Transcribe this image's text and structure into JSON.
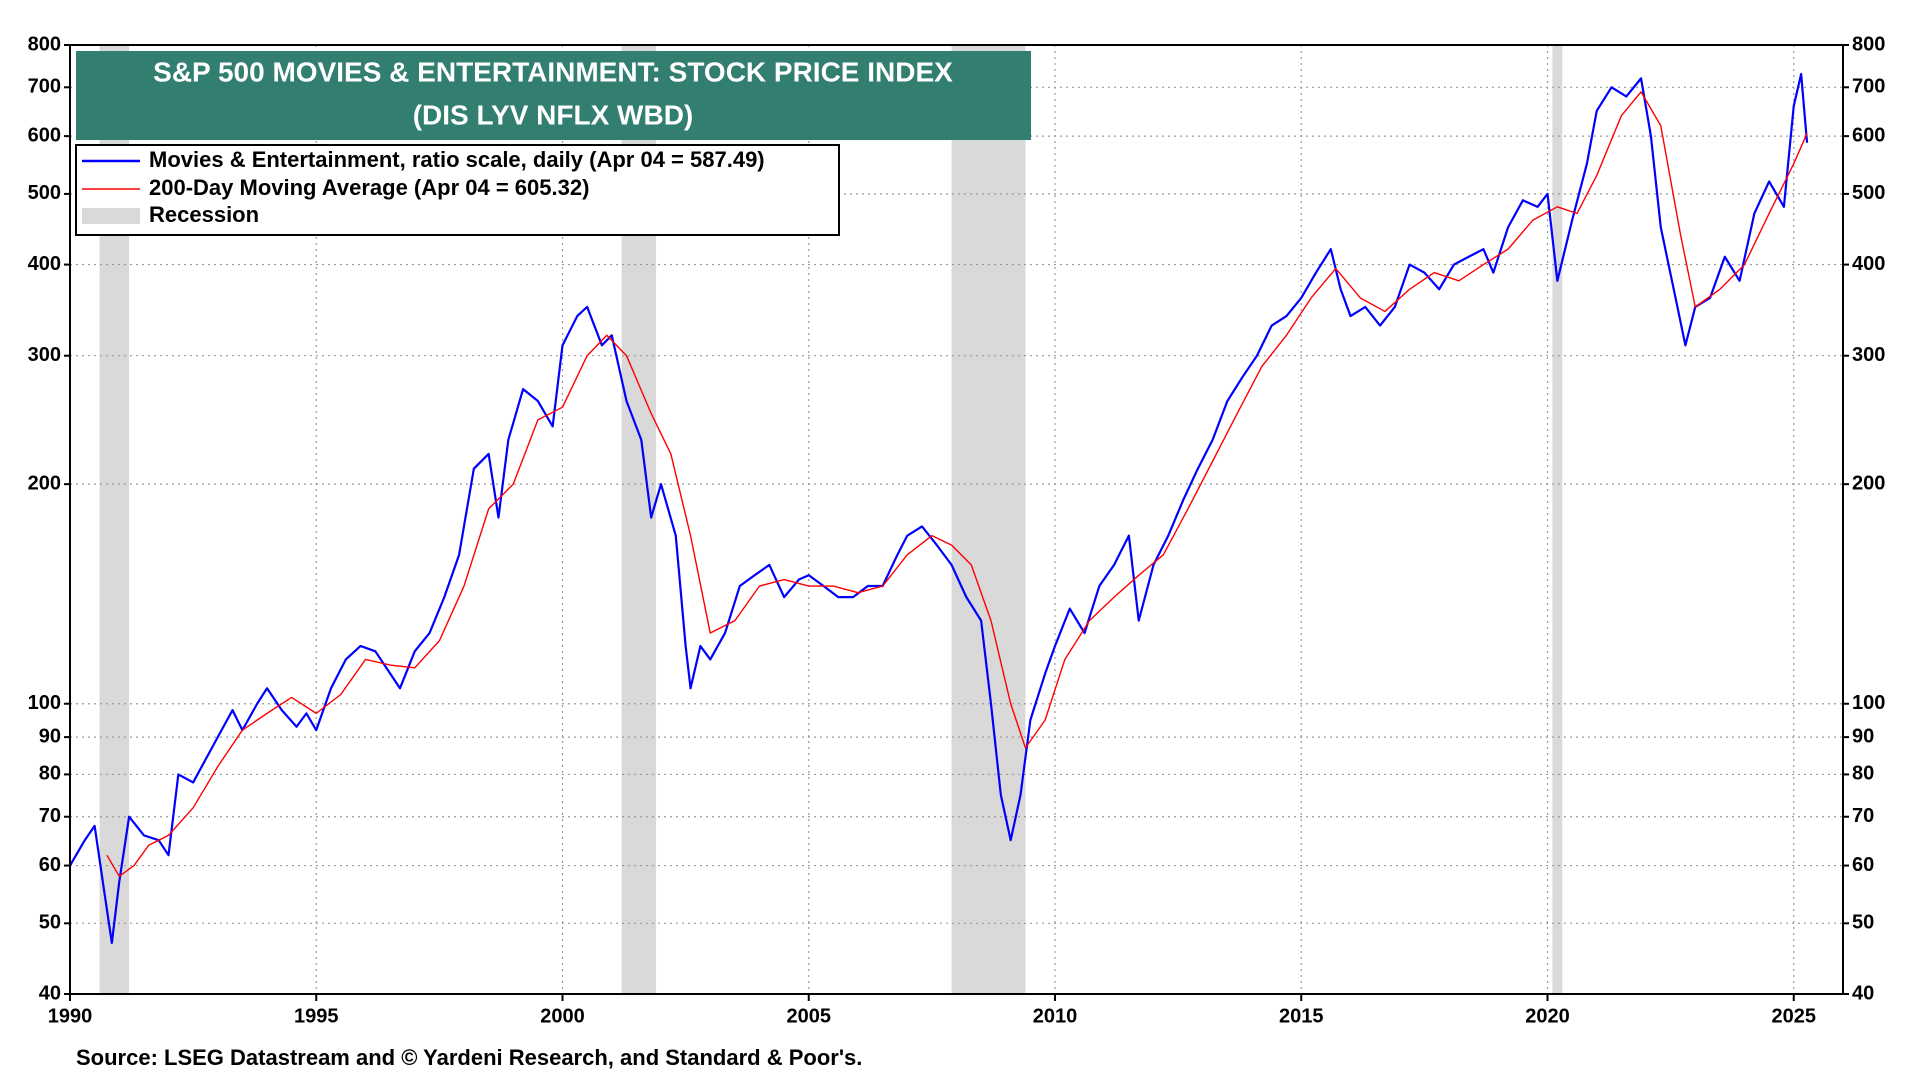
{
  "chart_data": {
    "type": "line",
    "title": "S&P 500 MOVIES & ENTERTAINMENT: STOCK PRICE INDEX",
    "subtitle": "(DIS LYV NFLX WBD)",
    "source": "Source: LSEG Datastream and © Yardeni Research, and Standard & Poor's.",
    "log_scale": true,
    "grid": true,
    "legend_position": "upper-left",
    "xlim": [
      1990,
      2026
    ],
    "xticks": [
      1990,
      1995,
      2000,
      2005,
      2010,
      2015,
      2020,
      2025
    ],
    "ylim": [
      40,
      800
    ],
    "yticks": [
      40,
      50,
      60,
      70,
      80,
      90,
      100,
      200,
      300,
      400,
      500,
      600,
      700,
      800
    ],
    "recession_label": "Recession",
    "recession_color": "#d9d9d9",
    "recessions": [
      {
        "start": 1990.6,
        "end": 1991.2
      },
      {
        "start": 2001.2,
        "end": 2001.9
      },
      {
        "start": 2007.9,
        "end": 2009.4
      },
      {
        "start": 2020.1,
        "end": 2020.3
      }
    ],
    "series": [
      {
        "name": "Movies & Entertainment, ratio scale, daily (Apr 04 = 587.49)",
        "color": "#0000ff",
        "x": [
          1990.0,
          1990.3,
          1990.5,
          1990.7,
          1990.85,
          1991.0,
          1991.2,
          1991.5,
          1991.8,
          1992.0,
          1992.2,
          1992.5,
          1992.8,
          1993.0,
          1993.3,
          1993.5,
          1993.8,
          1994.0,
          1994.3,
          1994.6,
          1994.8,
          1995.0,
          1995.3,
          1995.6,
          1995.9,
          1996.2,
          1996.5,
          1996.7,
          1997.0,
          1997.3,
          1997.6,
          1997.9,
          1998.2,
          1998.5,
          1998.7,
          1998.9,
          1999.2,
          1999.5,
          1999.8,
          2000.0,
          2000.3,
          2000.5,
          2000.8,
          2001.0,
          2001.3,
          2001.6,
          2001.8,
          2002.0,
          2002.3,
          2002.5,
          2002.6,
          2002.8,
          2003.0,
          2003.3,
          2003.6,
          2003.9,
          2004.2,
          2004.5,
          2004.8,
          2005.0,
          2005.3,
          2005.6,
          2005.9,
          2006.2,
          2006.5,
          2006.8,
          2007.0,
          2007.3,
          2007.6,
          2007.9,
          2008.2,
          2008.5,
          2008.7,
          2008.9,
          2009.1,
          2009.3,
          2009.5,
          2009.8,
          2010.0,
          2010.3,
          2010.6,
          2010.9,
          2011.2,
          2011.5,
          2011.7,
          2012.0,
          2012.3,
          2012.6,
          2012.9,
          2013.2,
          2013.5,
          2013.8,
          2014.1,
          2014.4,
          2014.7,
          2015.0,
          2015.3,
          2015.6,
          2015.8,
          2016.0,
          2016.3,
          2016.6,
          2016.9,
          2017.2,
          2017.5,
          2017.8,
          2018.1,
          2018.4,
          2018.7,
          2018.9,
          2019.2,
          2019.5,
          2019.8,
          2020.0,
          2020.2,
          2020.5,
          2020.8,
          2021.0,
          2021.3,
          2021.6,
          2021.9,
          2022.1,
          2022.3,
          2022.6,
          2022.8,
          2023.0,
          2023.3,
          2023.6,
          2023.9,
          2024.2,
          2024.5,
          2024.8,
          2025.0,
          2025.15,
          2025.27
        ],
        "values": [
          60,
          65,
          68,
          55,
          47,
          57,
          70,
          66,
          65,
          62,
          80,
          78,
          85,
          90,
          98,
          92,
          100,
          105,
          98,
          93,
          97,
          92,
          105,
          115,
          120,
          118,
          110,
          105,
          118,
          125,
          140,
          160,
          210,
          220,
          180,
          230,
          270,
          260,
          240,
          310,
          340,
          350,
          310,
          320,
          260,
          230,
          180,
          200,
          170,
          120,
          105,
          120,
          115,
          125,
          145,
          150,
          155,
          140,
          148,
          150,
          145,
          140,
          140,
          145,
          145,
          160,
          170,
          175,
          165,
          155,
          140,
          130,
          100,
          75,
          65,
          75,
          95,
          110,
          120,
          135,
          125,
          145,
          155,
          170,
          130,
          155,
          170,
          190,
          210,
          230,
          260,
          280,
          300,
          330,
          340,
          360,
          390,
          420,
          370,
          340,
          350,
          330,
          350,
          400,
          390,
          370,
          400,
          410,
          420,
          390,
          450,
          490,
          480,
          500,
          380,
          460,
          550,
          650,
          700,
          680,
          720,
          600,
          450,
          360,
          310,
          350,
          360,
          410,
          380,
          470,
          520,
          480,
          660,
          730,
          587.49
        ]
      },
      {
        "name": "200-Day Moving Average (Apr 04 = 605.32)",
        "color": "#ff0000",
        "x": [
          1990.75,
          1991.0,
          1991.3,
          1991.6,
          1992.0,
          1992.5,
          1993.0,
          1993.5,
          1994.0,
          1994.5,
          1995.0,
          1995.5,
          1996.0,
          1996.5,
          1997.0,
          1997.5,
          1998.0,
          1998.5,
          1999.0,
          1999.5,
          2000.0,
          2000.5,
          2000.9,
          2001.3,
          2001.8,
          2002.2,
          2002.6,
          2003.0,
          2003.5,
          2004.0,
          2004.5,
          2005.0,
          2005.5,
          2006.0,
          2006.5,
          2007.0,
          2007.5,
          2007.9,
          2008.3,
          2008.7,
          2009.1,
          2009.4,
          2009.8,
          2010.2,
          2010.7,
          2011.2,
          2011.7,
          2012.2,
          2012.7,
          2013.2,
          2013.7,
          2014.2,
          2014.7,
          2015.2,
          2015.7,
          2016.2,
          2016.7,
          2017.2,
          2017.7,
          2018.2,
          2018.7,
          2019.2,
          2019.7,
          2020.2,
          2020.6,
          2021.0,
          2021.5,
          2021.9,
          2022.3,
          2022.7,
          2023.0,
          2023.5,
          2024.0,
          2024.5,
          2025.0,
          2025.27
        ],
        "values": [
          62,
          58,
          60,
          64,
          66,
          72,
          82,
          92,
          97,
          102,
          97,
          103,
          115,
          113,
          112,
          122,
          145,
          185,
          200,
          245,
          255,
          300,
          320,
          300,
          250,
          220,
          170,
          125,
          130,
          145,
          148,
          145,
          145,
          142,
          145,
          160,
          170,
          165,
          155,
          130,
          100,
          87,
          95,
          115,
          130,
          140,
          150,
          160,
          185,
          215,
          250,
          290,
          320,
          360,
          395,
          360,
          345,
          370,
          390,
          380,
          400,
          420,
          460,
          480,
          470,
          530,
          640,
          690,
          620,
          440,
          350,
          370,
          400,
          470,
          550,
          605.32
        ]
      }
    ]
  }
}
